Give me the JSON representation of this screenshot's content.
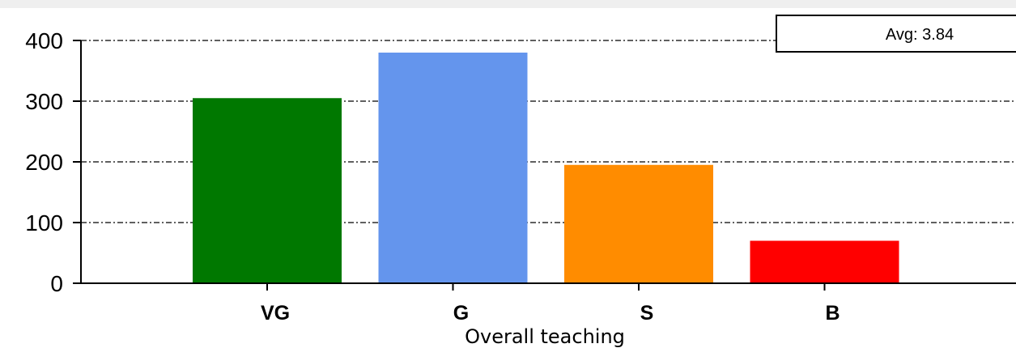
{
  "chart_data": {
    "type": "bar",
    "categories": [
      "VG",
      "G",
      "S",
      "B"
    ],
    "values": [
      305,
      380,
      195,
      70
    ],
    "colors": [
      "#007800",
      "#6495ed",
      "#ff8c00",
      "#ff0000"
    ],
    "xlabel": "Overall teaching",
    "ylabel": "",
    "ylim": [
      0,
      400
    ],
    "yticks": [
      "0",
      "100",
      "200",
      "300",
      "400"
    ],
    "grid": true,
    "legend": {
      "text": "Avg: 3.84",
      "placement": "top-right"
    }
  }
}
